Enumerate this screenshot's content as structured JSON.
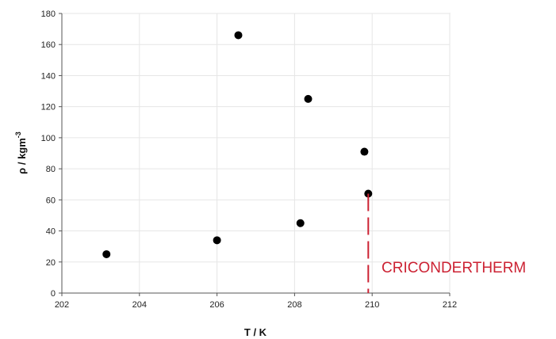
{
  "chart_data": {
    "type": "scatter",
    "xlabel": "T / K",
    "ylabel_main": "ρ / kgm",
    "ylabel_sup": "-3",
    "xlim": [
      202,
      212
    ],
    "ylim": [
      0,
      180
    ],
    "xticks": [
      202,
      204,
      206,
      208,
      210,
      212
    ],
    "yticks": [
      0,
      20,
      40,
      60,
      80,
      100,
      120,
      140,
      160,
      180
    ],
    "grid": true,
    "series": [
      {
        "color": "#000000",
        "points": [
          {
            "x": 203.15,
            "y": 25
          },
          {
            "x": 206.0,
            "y": 34
          },
          {
            "x": 206.55,
            "y": 166
          },
          {
            "x": 208.15,
            "y": 45
          },
          {
            "x": 208.35,
            "y": 125
          },
          {
            "x": 209.8,
            "y": 91
          },
          {
            "x": 209.9,
            "y": 64
          }
        ]
      }
    ],
    "annotation": {
      "text": "CRICONDERTHERM",
      "color": "#cc2233",
      "x": 209.9,
      "y_from": 64,
      "y_to": 0
    }
  }
}
